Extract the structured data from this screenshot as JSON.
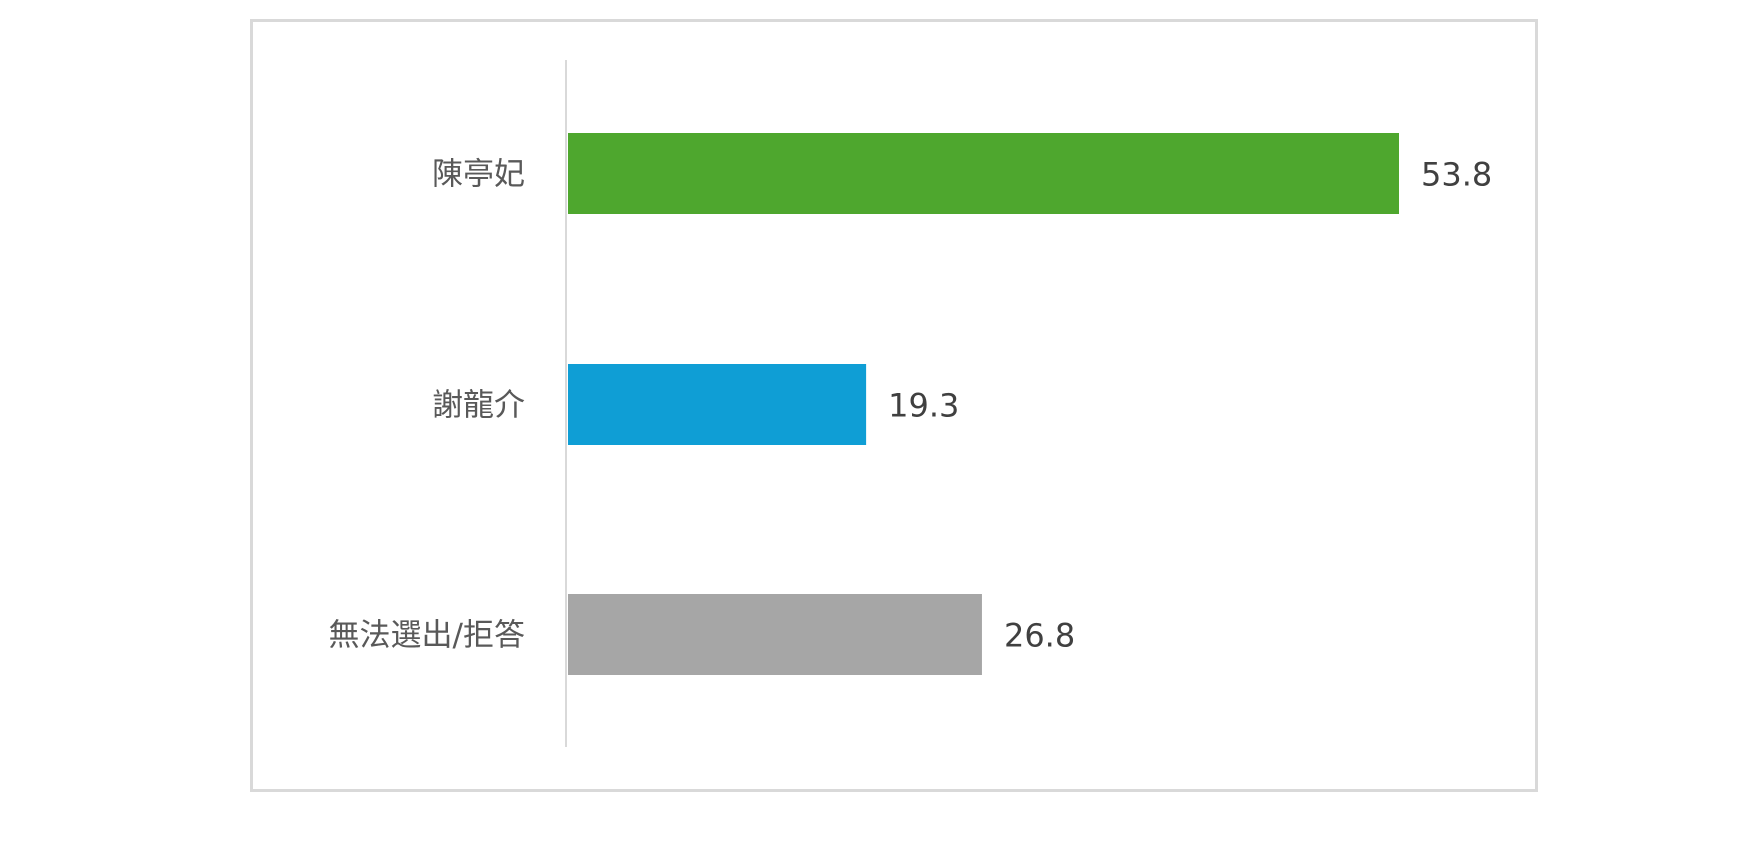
{
  "chart_data": {
    "type": "bar",
    "orientation": "horizontal",
    "categories": [
      "陳亭妃",
      "謝龍介",
      "無法選出/拒答"
    ],
    "values": [
      53.8,
      19.3,
      26.8
    ],
    "data_labels": [
      "53.8",
      "19.3",
      "26.8"
    ],
    "colors": [
      "#4ea72e",
      "#0f9ed5",
      "#a6a6a6"
    ],
    "xlim": [
      0,
      53.8
    ],
    "grid": false,
    "legend": "none"
  }
}
